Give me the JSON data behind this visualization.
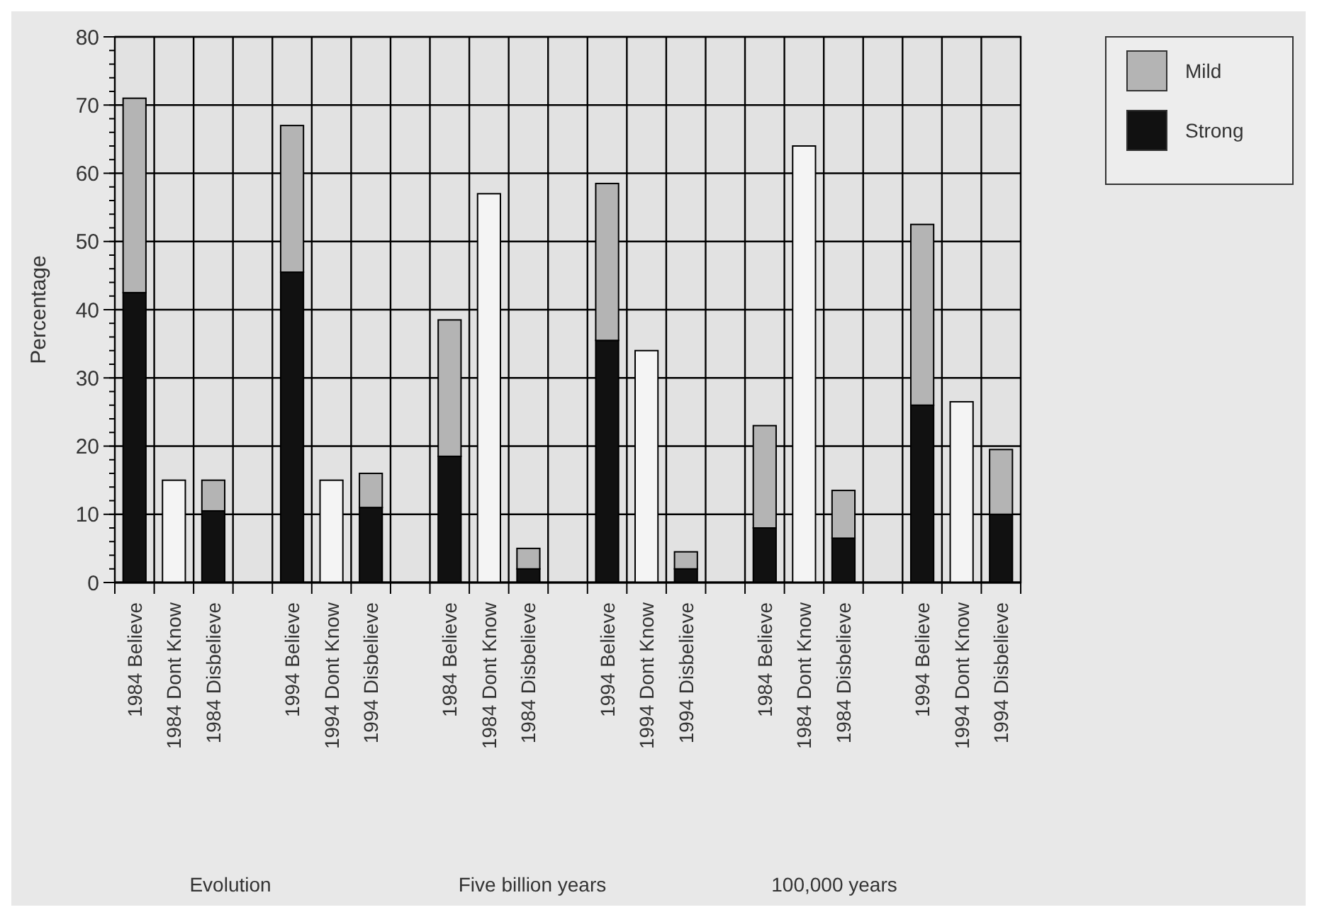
{
  "chart_data": {
    "type": "bar",
    "stacked": true,
    "ylabel": "Percentage",
    "categories": [
      "1984 Believe",
      "1984 Dont Know",
      "1984 Disbelieve",
      null,
      "1994 Believe",
      "1994 Dont Know",
      "1994 Disbelieve",
      null,
      "1984 Believe",
      "1984 Dont Know",
      "1984 Disbelieve",
      null,
      "1994 Believe",
      "1994 Dont Know",
      "1994 Disbelieve",
      null,
      "1984 Believe",
      "1984 Dont Know",
      "1984 Disbelieve",
      null,
      "1994 Believe",
      "1994 Dont Know",
      "1994 Disbelieve"
    ],
    "series": [
      {
        "name": "Strong",
        "color": "#111111",
        "values": [
          42.5,
          null,
          10.5,
          null,
          45.5,
          null,
          11,
          null,
          18.5,
          null,
          2,
          null,
          35.5,
          null,
          2,
          null,
          8,
          null,
          6.5,
          null,
          26,
          null,
          10
        ]
      },
      {
        "name": "Mild",
        "color": "#b4b4b4",
        "values": [
          28.5,
          null,
          4.5,
          null,
          21.5,
          null,
          5,
          null,
          20,
          null,
          3,
          null,
          23,
          null,
          2.5,
          null,
          15,
          null,
          7,
          null,
          26.5,
          null,
          9.5
        ]
      },
      {
        "color": "#f4f4f4",
        "values": [
          null,
          15,
          null,
          null,
          null,
          15,
          null,
          null,
          null,
          57,
          null,
          null,
          null,
          34,
          null,
          null,
          null,
          64,
          null,
          null,
          null,
          26.5,
          null
        ]
      }
    ],
    "ylim": [
      0,
      80
    ],
    "yticks": [
      0,
      10,
      20,
      30,
      40,
      50,
      60,
      70,
      80
    ],
    "grid": true,
    "legend": "top right",
    "annotations": [
      "Evolution",
      "Five billion years",
      "100,000 years"
    ]
  }
}
